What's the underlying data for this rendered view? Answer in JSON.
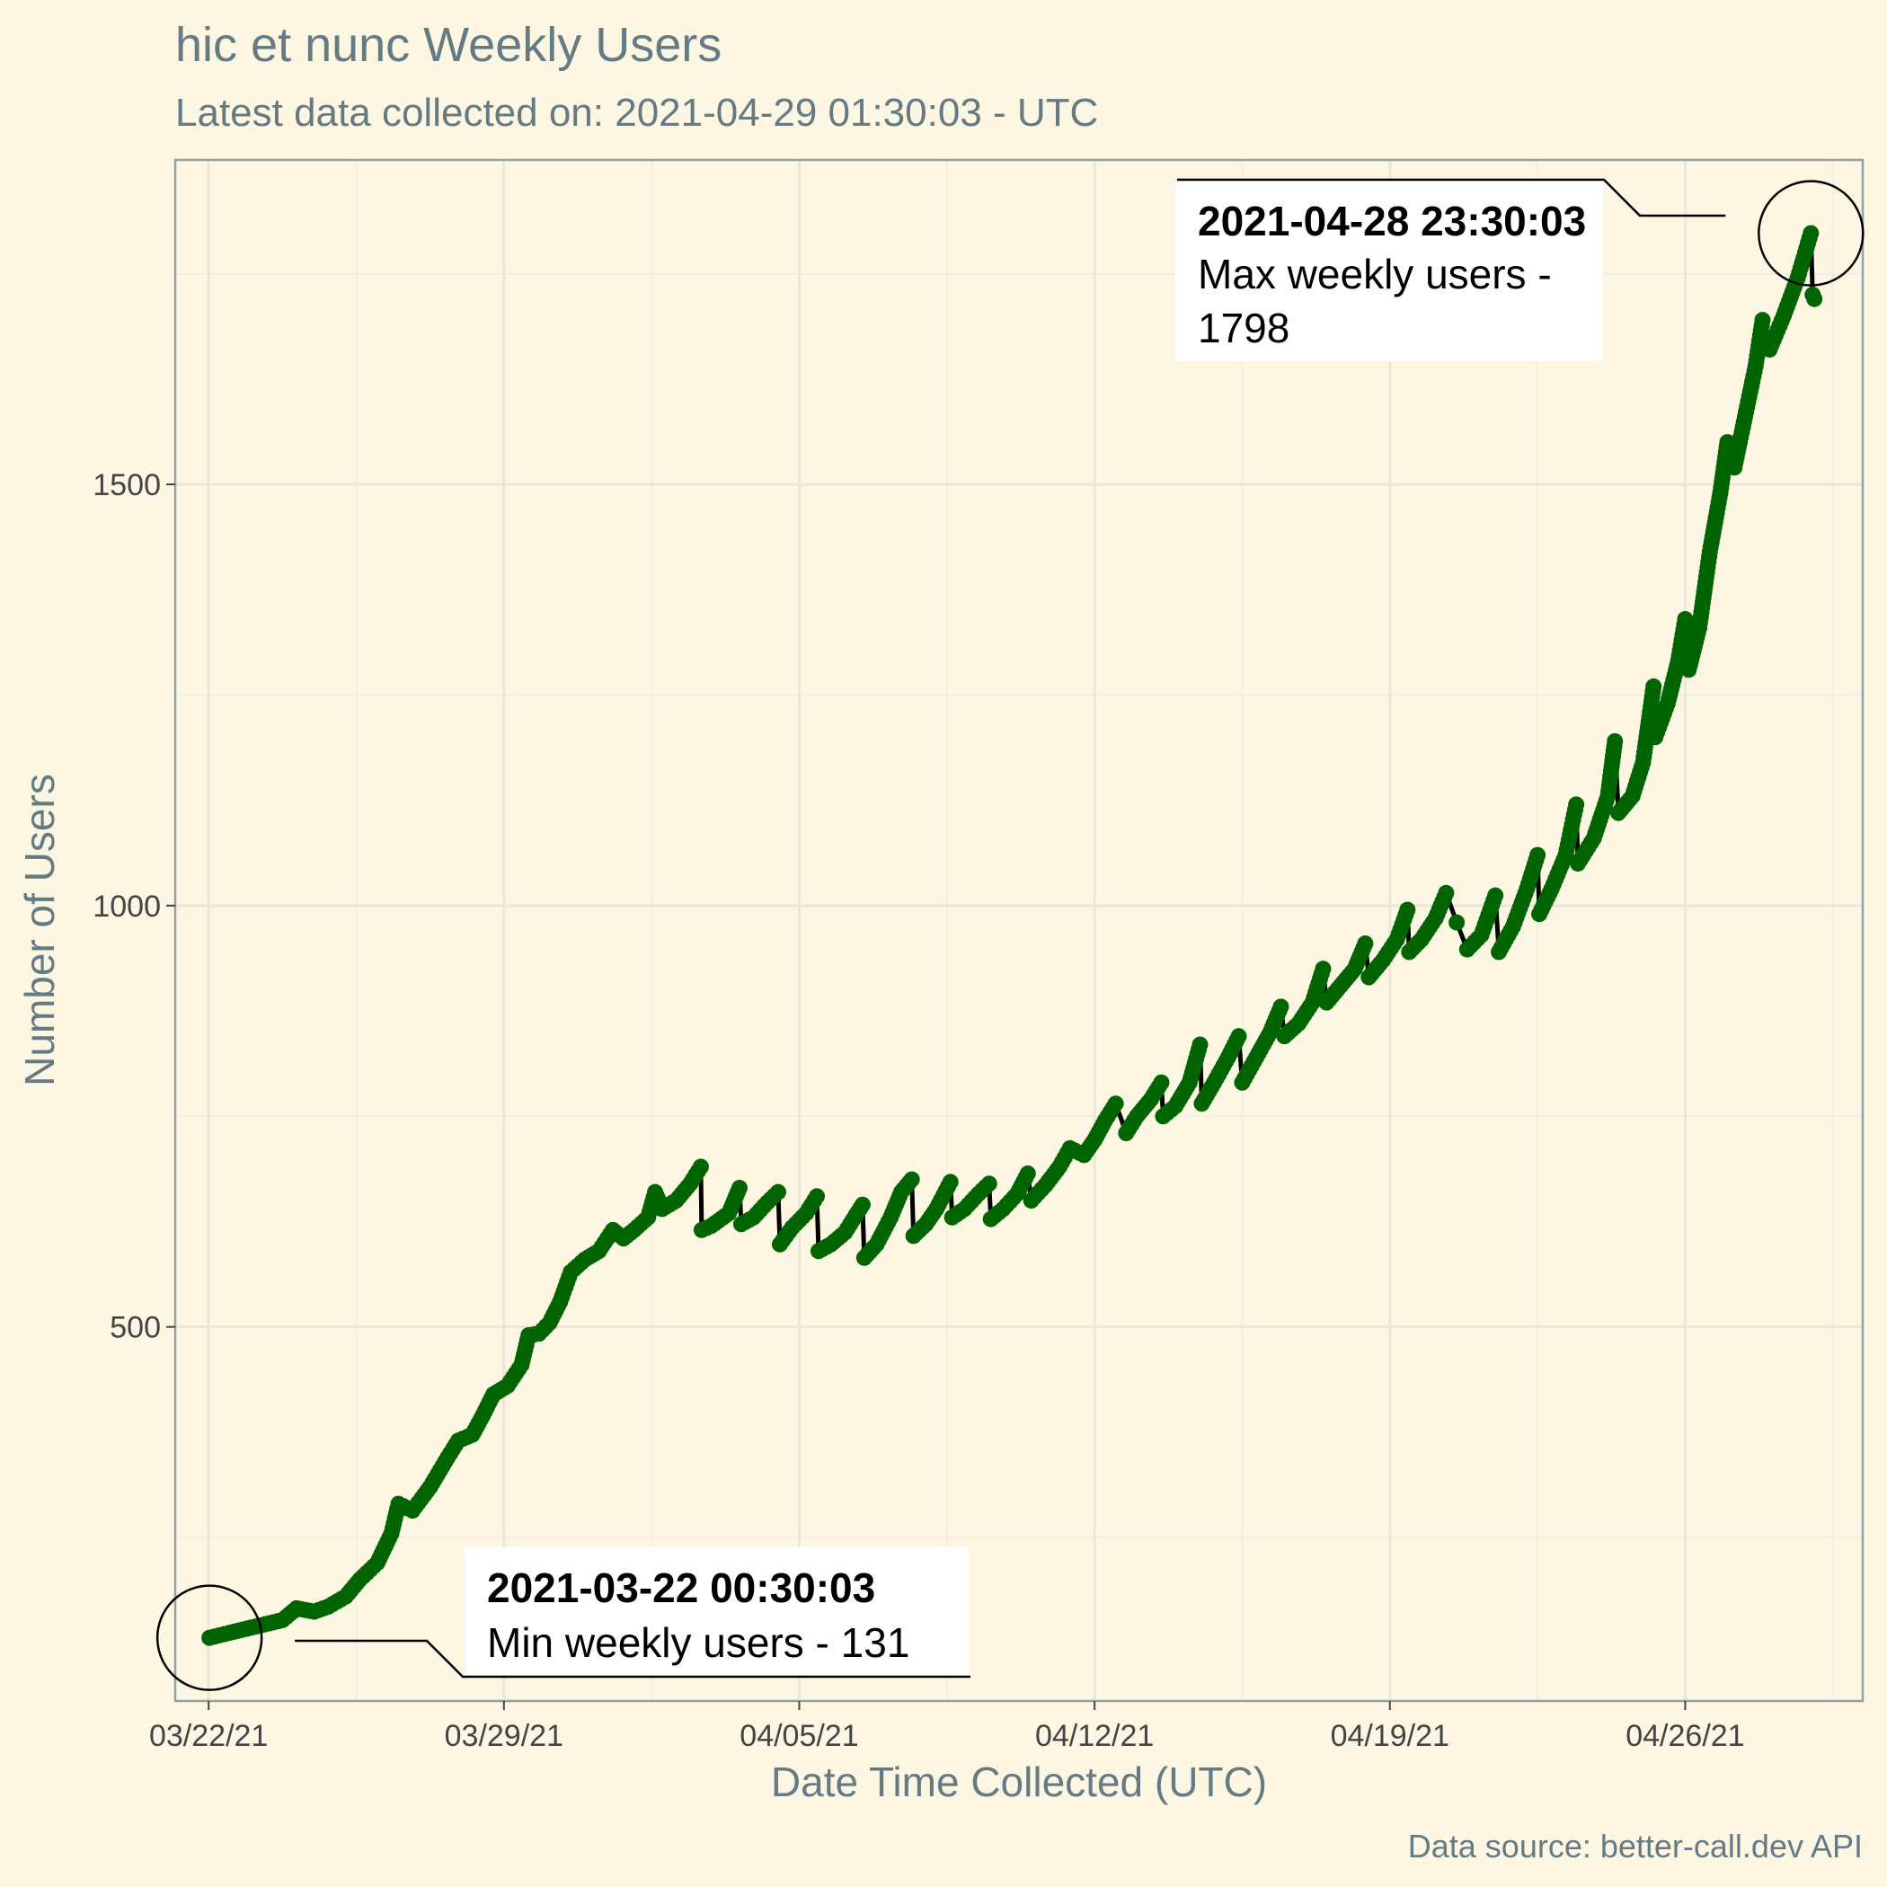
{
  "chart_data": {
    "type": "line",
    "title": "hic et nunc Weekly Users",
    "subtitle": "Latest data collected on: 2021-04-29 01:30:03  - UTC",
    "xlabel": "Date Time Collected (UTC)",
    "ylabel": "Number of Users",
    "caption": "Data source: better-call.dev API",
    "x_range": [
      "2021-03-21T05:00:00",
      "2021-04-30T05:00:00"
    ],
    "ylim": [
      56,
      1885
    ],
    "x_ticks": [
      {
        "date": "2021-03-22",
        "label": "03/22/21"
      },
      {
        "date": "2021-03-29",
        "label": "03/29/21"
      },
      {
        "date": "2021-04-05",
        "label": "04/05/21"
      },
      {
        "date": "2021-04-12",
        "label": "04/12/21"
      },
      {
        "date": "2021-04-19",
        "label": "04/19/21"
      },
      {
        "date": "2021-04-26",
        "label": "04/26/21"
      }
    ],
    "y_ticks": [
      500,
      1000,
      1500
    ],
    "line_color": "#000000",
    "point_color": "#006400",
    "series": [
      {
        "points": [
          [
            "2021-03-22T00:30",
            131
          ],
          [
            "2021-03-22T12:00",
            137
          ],
          [
            "2021-03-23T00:00",
            143
          ],
          [
            "2021-03-23T08:00",
            147
          ],
          [
            "2021-03-23T18:00",
            152
          ],
          [
            "2021-03-24T02:00",
            166
          ],
          [
            "2021-03-24T12:00",
            162
          ],
          [
            "2021-03-24T20:00",
            168
          ],
          [
            "2021-03-25T06:00",
            180
          ],
          [
            "2021-03-25T14:00",
            200
          ],
          [
            "2021-03-26T00:00",
            220
          ],
          [
            "2021-03-26T08:00",
            255
          ],
          [
            "2021-03-26T12:00",
            290
          ],
          [
            "2021-03-26T20:00",
            282
          ],
          [
            "2021-03-27T06:00",
            310
          ],
          [
            "2021-03-27T16:00",
            345
          ],
          [
            "2021-03-27T22:00",
            365
          ],
          [
            "2021-03-28T06:00",
            372
          ],
          [
            "2021-03-28T12:00",
            395
          ],
          [
            "2021-03-28T18:00",
            420
          ],
          [
            "2021-03-29T02:00",
            430
          ],
          [
            "2021-03-29T10:00",
            455
          ],
          [
            "2021-03-29T14:00",
            490
          ],
          [
            "2021-03-29T20:00",
            492
          ],
          [
            "2021-03-30T02:00",
            505
          ],
          [
            "2021-03-30T08:00",
            530
          ],
          [
            "2021-03-30T14:00",
            565
          ],
          [
            "2021-03-30T22:00",
            580
          ],
          [
            "2021-03-31T06:00",
            590
          ],
          [
            "2021-03-31T14:00",
            615
          ],
          [
            "2021-03-31T20:00",
            605
          ],
          [
            "2021-04-01T02:00",
            615
          ],
          [
            "2021-04-01T10:00",
            630
          ],
          [
            "2021-04-01T14:00",
            660
          ],
          [
            "2021-04-01T18:00",
            640
          ],
          [
            "2021-04-02T02:00",
            650
          ],
          [
            "2021-04-02T10:00",
            670
          ],
          [
            "2021-04-02T16:00",
            690
          ],
          [
            "2021-04-02T16:30",
            615
          ],
          [
            "2021-04-02T22:00",
            620
          ],
          [
            "2021-04-03T08:00",
            635
          ],
          [
            "2021-04-03T14:00",
            665
          ],
          [
            "2021-04-03T15:00",
            622
          ],
          [
            "2021-04-03T22:00",
            630
          ],
          [
            "2021-04-04T06:00",
            648
          ],
          [
            "2021-04-04T12:00",
            660
          ],
          [
            "2021-04-04T13:00",
            598
          ],
          [
            "2021-04-04T20:00",
            618
          ],
          [
            "2021-04-05T04:00",
            635
          ],
          [
            "2021-04-05T10:00",
            655
          ],
          [
            "2021-04-05T11:00",
            590
          ],
          [
            "2021-04-05T18:00",
            598
          ],
          [
            "2021-04-06T02:00",
            612
          ],
          [
            "2021-04-06T08:00",
            632
          ],
          [
            "2021-04-06T12:00",
            645
          ],
          [
            "2021-04-06T13:00",
            582
          ],
          [
            "2021-04-06T20:00",
            598
          ],
          [
            "2021-04-07T04:00",
            630
          ],
          [
            "2021-04-07T10:00",
            660
          ],
          [
            "2021-04-07T16:00",
            675
          ],
          [
            "2021-04-07T17:00",
            608
          ],
          [
            "2021-04-08T00:00",
            622
          ],
          [
            "2021-04-08T06:00",
            640
          ],
          [
            "2021-04-08T14:00",
            672
          ],
          [
            "2021-04-08T15:00",
            630
          ],
          [
            "2021-04-08T22:00",
            640
          ],
          [
            "2021-04-09T06:00",
            658
          ],
          [
            "2021-04-09T12:00",
            670
          ],
          [
            "2021-04-09T13:00",
            628
          ],
          [
            "2021-04-09T20:00",
            640
          ],
          [
            "2021-04-10T04:00",
            658
          ],
          [
            "2021-04-10T10:00",
            682
          ],
          [
            "2021-04-10T12:00",
            650
          ],
          [
            "2021-04-10T20:00",
            668
          ],
          [
            "2021-04-11T04:00",
            690
          ],
          [
            "2021-04-11T10:00",
            712
          ],
          [
            "2021-04-11T18:00",
            704
          ],
          [
            "2021-04-12T00:00",
            722
          ],
          [
            "2021-04-12T06:00",
            745
          ],
          [
            "2021-04-12T12:00",
            765
          ],
          [
            "2021-04-12T18:00",
            730
          ],
          [
            "2021-04-13T00:00",
            750
          ],
          [
            "2021-04-13T08:00",
            770
          ],
          [
            "2021-04-13T14:00",
            790
          ],
          [
            "2021-04-13T15:00",
            750
          ],
          [
            "2021-04-13T22:00",
            762
          ],
          [
            "2021-04-14T06:00",
            790
          ],
          [
            "2021-04-14T12:00",
            835
          ],
          [
            "2021-04-14T13:00",
            765
          ],
          [
            "2021-04-14T20:00",
            790
          ],
          [
            "2021-04-15T04:00",
            820
          ],
          [
            "2021-04-15T10:00",
            845
          ],
          [
            "2021-04-15T12:00",
            790
          ],
          [
            "2021-04-15T20:00",
            820
          ],
          [
            "2021-04-16T04:00",
            850
          ],
          [
            "2021-04-16T10:00",
            880
          ],
          [
            "2021-04-16T12:00",
            845
          ],
          [
            "2021-04-16T20:00",
            860
          ],
          [
            "2021-04-17T04:00",
            885
          ],
          [
            "2021-04-17T10:00",
            925
          ],
          [
            "2021-04-17T12:00",
            885
          ],
          [
            "2021-04-17T20:00",
            905
          ],
          [
            "2021-04-18T04:00",
            925
          ],
          [
            "2021-04-18T10:00",
            955
          ],
          [
            "2021-04-18T12:00",
            915
          ],
          [
            "2021-04-18T20:00",
            935
          ],
          [
            "2021-04-19T04:00",
            960
          ],
          [
            "2021-04-19T10:00",
            995
          ],
          [
            "2021-04-19T11:00",
            945
          ],
          [
            "2021-04-19T18:00",
            960
          ],
          [
            "2021-04-20T02:00",
            985
          ],
          [
            "2021-04-20T08:00",
            1015
          ],
          [
            "2021-04-20T14:00",
            980
          ],
          [
            "2021-04-20T20:00",
            948
          ],
          [
            "2021-04-21T04:00",
            965
          ],
          [
            "2021-04-21T12:00",
            1012
          ],
          [
            "2021-04-21T14:00",
            945
          ],
          [
            "2021-04-21T22:00",
            975
          ],
          [
            "2021-04-22T06:00",
            1020
          ],
          [
            "2021-04-22T12:00",
            1060
          ],
          [
            "2021-04-22T13:00",
            990
          ],
          [
            "2021-04-22T20:00",
            1020
          ],
          [
            "2021-04-23T04:00",
            1060
          ],
          [
            "2021-04-23T10:00",
            1120
          ],
          [
            "2021-04-23T11:00",
            1050
          ],
          [
            "2021-04-23T20:00",
            1080
          ],
          [
            "2021-04-24T04:00",
            1130
          ],
          [
            "2021-04-24T08:00",
            1195
          ],
          [
            "2021-04-24T10:00",
            1110
          ],
          [
            "2021-04-24T18:00",
            1130
          ],
          [
            "2021-04-25T00:00",
            1170
          ],
          [
            "2021-04-25T04:00",
            1230
          ],
          [
            "2021-04-25T06:00",
            1260
          ],
          [
            "2021-04-25T07:00",
            1200
          ],
          [
            "2021-04-25T14:00",
            1240
          ],
          [
            "2021-04-25T20:00",
            1290
          ],
          [
            "2021-04-26T00:00",
            1340
          ],
          [
            "2021-04-26T02:00",
            1280
          ],
          [
            "2021-04-26T08:00",
            1330
          ],
          [
            "2021-04-26T14:00",
            1420
          ],
          [
            "2021-04-26T20:00",
            1490
          ],
          [
            "2021-04-27T00:00",
            1550
          ],
          [
            "2021-04-27T04:00",
            1520
          ],
          [
            "2021-04-27T10:00",
            1580
          ],
          [
            "2021-04-27T16:00",
            1640
          ],
          [
            "2021-04-27T20:00",
            1695
          ],
          [
            "2021-04-28T00:00",
            1660
          ],
          [
            "2021-04-28T08:00",
            1700
          ],
          [
            "2021-04-28T16:00",
            1745
          ],
          [
            "2021-04-28T23:30",
            1798
          ],
          [
            "2021-04-29T00:30",
            1725
          ],
          [
            "2021-04-29T01:30",
            1720
          ]
        ]
      }
    ],
    "annotations": [
      {
        "id": "max",
        "date": "2021-04-28T23:30",
        "value": 1798,
        "title": "2021-04-28 23:30:03",
        "lines": [
          "Max weekly users -",
          "1798"
        ]
      },
      {
        "id": "min",
        "date": "2021-03-22T00:30",
        "value": 131,
        "title": "2021-03-22 00:30:03",
        "lines": [
          "Min weekly users - 131"
        ]
      }
    ]
  }
}
